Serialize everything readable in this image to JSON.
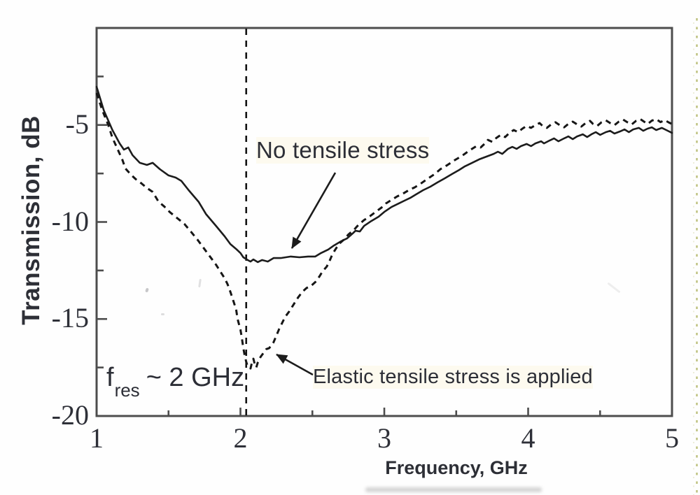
{
  "figure": {
    "y_axis_title": "Transmission, dB",
    "x_axis_title": "Frequency, GHz",
    "x_tick_labels": [
      "1",
      "2",
      "3",
      "4",
      "5"
    ],
    "y_tick_labels": [
      "-5",
      "-10",
      "-15",
      "-20"
    ],
    "annotations": {
      "no_stress": "No tensile stress",
      "elastic_stress": "Elastic tensile stress is applied",
      "resonance_symbol": "f",
      "resonance_subscript": "res",
      "resonance_value": "~ 2 GHz"
    },
    "colors": {
      "curve": "#1c1c1c",
      "axis": "#4d4d4d",
      "text": "#2d2f36",
      "scan_artifact": "#b5ba6d"
    }
  },
  "chart_data": {
    "type": "line",
    "title": "",
    "xlabel": "Frequency, GHz",
    "ylabel": "Transmission, dB",
    "xlim": [
      1,
      5
    ],
    "ylim": [
      -20,
      0
    ],
    "grid": false,
    "legend_position": "inline-annotations",
    "x_major_ticks": [
      1,
      2,
      3,
      4,
      5
    ],
    "x_minor_ticks": [
      1.5,
      2.5,
      3.5,
      4.5
    ],
    "y_major_ticks": [
      -5,
      -10,
      -15,
      -20
    ],
    "y_minor_ticks": [
      -2.5,
      -7.5,
      -12.5,
      -17.5
    ],
    "vline": {
      "x": 2.04,
      "style": "dashed",
      "label": "f_res ~ 2 GHz"
    },
    "series": [
      {
        "name": "No tensile stress",
        "line_style": "solid",
        "min_point": [
          2.15,
          -12.1
        ],
        "points": [
          [
            1.0,
            -3.03
          ],
          [
            1.05,
            -4.25
          ],
          [
            1.11,
            -5.26
          ],
          [
            1.16,
            -5.95
          ],
          [
            1.19,
            -6.27
          ],
          [
            1.22,
            -6.16
          ],
          [
            1.25,
            -6.56
          ],
          [
            1.3,
            -6.95
          ],
          [
            1.35,
            -7.06
          ],
          [
            1.39,
            -6.95
          ],
          [
            1.44,
            -7.28
          ],
          [
            1.5,
            -7.6
          ],
          [
            1.55,
            -7.71
          ],
          [
            1.59,
            -7.89
          ],
          [
            1.64,
            -8.36
          ],
          [
            1.71,
            -8.97
          ],
          [
            1.76,
            -9.59
          ],
          [
            1.83,
            -10.2
          ],
          [
            1.89,
            -10.74
          ],
          [
            1.93,
            -11.14
          ],
          [
            1.97,
            -11.39
          ],
          [
            2.0,
            -11.6
          ],
          [
            2.02,
            -11.82
          ],
          [
            2.05,
            -11.96
          ],
          [
            2.07,
            -12.04
          ],
          [
            2.09,
            -11.93
          ],
          [
            2.12,
            -12.07
          ],
          [
            2.15,
            -11.96
          ],
          [
            2.19,
            -12.04
          ],
          [
            2.23,
            -11.86
          ],
          [
            2.28,
            -11.86
          ],
          [
            2.35,
            -11.78
          ],
          [
            2.41,
            -11.82
          ],
          [
            2.47,
            -11.78
          ],
          [
            2.52,
            -11.78
          ],
          [
            2.56,
            -11.6
          ],
          [
            2.61,
            -11.42
          ],
          [
            2.65,
            -11.21
          ],
          [
            2.7,
            -10.99
          ],
          [
            2.74,
            -10.85
          ],
          [
            2.78,
            -10.59
          ],
          [
            2.8,
            -10.45
          ],
          [
            2.83,
            -10.49
          ],
          [
            2.86,
            -10.2
          ],
          [
            2.91,
            -9.95
          ],
          [
            2.96,
            -9.73
          ],
          [
            3.0,
            -9.48
          ],
          [
            3.05,
            -9.23
          ],
          [
            3.1,
            -9.05
          ],
          [
            3.14,
            -8.9
          ],
          [
            3.18,
            -8.76
          ],
          [
            3.22,
            -8.58
          ],
          [
            3.27,
            -8.36
          ],
          [
            3.32,
            -8.18
          ],
          [
            3.37,
            -7.96
          ],
          [
            3.42,
            -7.75
          ],
          [
            3.47,
            -7.53
          ],
          [
            3.52,
            -7.32
          ],
          [
            3.56,
            -7.13
          ],
          [
            3.61,
            -6.95
          ],
          [
            3.66,
            -6.77
          ],
          [
            3.71,
            -6.63
          ],
          [
            3.76,
            -6.49
          ],
          [
            3.79,
            -6.38
          ],
          [
            3.82,
            -6.49
          ],
          [
            3.86,
            -6.23
          ],
          [
            3.89,
            -6.13
          ],
          [
            3.92,
            -6.23
          ],
          [
            3.95,
            -6.09
          ],
          [
            3.99,
            -5.98
          ],
          [
            4.02,
            -6.09
          ],
          [
            4.05,
            -5.95
          ],
          [
            4.09,
            -5.84
          ],
          [
            4.11,
            -5.95
          ],
          [
            4.15,
            -5.8
          ],
          [
            4.18,
            -5.69
          ],
          [
            4.21,
            -5.84
          ],
          [
            4.25,
            -5.69
          ],
          [
            4.28,
            -5.59
          ],
          [
            4.31,
            -5.73
          ],
          [
            4.34,
            -5.59
          ],
          [
            4.38,
            -5.48
          ],
          [
            4.41,
            -5.62
          ],
          [
            4.44,
            -5.48
          ],
          [
            4.47,
            -5.37
          ],
          [
            4.5,
            -5.51
          ],
          [
            4.54,
            -5.37
          ],
          [
            4.57,
            -5.3
          ],
          [
            4.6,
            -5.44
          ],
          [
            4.64,
            -5.33
          ],
          [
            4.67,
            -5.23
          ],
          [
            4.7,
            -5.37
          ],
          [
            4.73,
            -5.23
          ],
          [
            4.77,
            -5.15
          ],
          [
            4.8,
            -5.3
          ],
          [
            4.83,
            -5.19
          ],
          [
            4.86,
            -5.12
          ],
          [
            4.89,
            -5.26
          ],
          [
            4.93,
            -5.15
          ],
          [
            4.96,
            -5.26
          ],
          [
            5.0,
            -5.41
          ]
        ]
      },
      {
        "name": "Elastic tensile stress is applied",
        "line_style": "dashed",
        "min_point": [
          2.07,
          -17.55
        ],
        "points": [
          [
            1.0,
            -3.35
          ],
          [
            1.04,
            -4.25
          ],
          [
            1.08,
            -4.97
          ],
          [
            1.11,
            -5.66
          ],
          [
            1.15,
            -6.31
          ],
          [
            1.18,
            -6.81
          ],
          [
            1.2,
            -7.24
          ],
          [
            1.24,
            -7.57
          ],
          [
            1.27,
            -7.78
          ],
          [
            1.31,
            -8.0
          ],
          [
            1.35,
            -8.25
          ],
          [
            1.39,
            -8.45
          ],
          [
            1.43,
            -8.95
          ],
          [
            1.47,
            -9.2
          ],
          [
            1.51,
            -9.5
          ],
          [
            1.56,
            -9.8
          ],
          [
            1.61,
            -10.1
          ],
          [
            1.65,
            -10.45
          ],
          [
            1.7,
            -10.9
          ],
          [
            1.74,
            -11.3
          ],
          [
            1.77,
            -11.6
          ],
          [
            1.8,
            -11.9
          ],
          [
            1.83,
            -12.2
          ],
          [
            1.86,
            -12.55
          ],
          [
            1.89,
            -12.9
          ],
          [
            1.91,
            -13.2
          ],
          [
            1.93,
            -13.6
          ],
          [
            1.95,
            -14.05
          ],
          [
            1.97,
            -14.5
          ],
          [
            1.98,
            -15.0
          ],
          [
            2.0,
            -15.55
          ],
          [
            2.01,
            -16.0
          ],
          [
            2.02,
            -16.5
          ],
          [
            2.03,
            -16.9
          ],
          [
            2.04,
            -17.2
          ],
          [
            2.05,
            -17.45
          ],
          [
            2.07,
            -17.55
          ],
          [
            2.08,
            -17.25
          ],
          [
            2.09,
            -17.05
          ],
          [
            2.1,
            -17.35
          ],
          [
            2.11,
            -17.5
          ],
          [
            2.12,
            -17.25
          ],
          [
            2.14,
            -16.95
          ],
          [
            2.16,
            -16.75
          ],
          [
            2.18,
            -16.55
          ],
          [
            2.2,
            -16.5
          ],
          [
            2.23,
            -16.2
          ],
          [
            2.25,
            -15.85
          ],
          [
            2.27,
            -15.5
          ],
          [
            2.29,
            -15.2
          ],
          [
            2.31,
            -14.9
          ],
          [
            2.34,
            -14.6
          ],
          [
            2.37,
            -14.25
          ],
          [
            2.4,
            -13.9
          ],
          [
            2.43,
            -13.6
          ],
          [
            2.46,
            -13.4
          ],
          [
            2.49,
            -13.3
          ],
          [
            2.52,
            -13.1
          ],
          [
            2.55,
            -12.8
          ],
          [
            2.57,
            -12.55
          ],
          [
            2.6,
            -12.3
          ],
          [
            2.62,
            -12.0
          ],
          [
            2.64,
            -11.65
          ],
          [
            2.67,
            -11.3
          ],
          [
            2.69,
            -11.1
          ],
          [
            2.72,
            -10.9
          ],
          [
            2.75,
            -10.65
          ],
          [
            2.79,
            -10.4
          ],
          [
            2.82,
            -10.15
          ],
          [
            2.86,
            -9.9
          ],
          [
            2.9,
            -9.7
          ],
          [
            2.94,
            -9.48
          ],
          [
            2.98,
            -9.26
          ],
          [
            3.01,
            -9.05
          ],
          [
            3.05,
            -8.86
          ],
          [
            3.09,
            -8.68
          ],
          [
            3.13,
            -8.54
          ],
          [
            3.17,
            -8.36
          ],
          [
            3.21,
            -8.22
          ],
          [
            3.25,
            -8.04
          ],
          [
            3.3,
            -7.78
          ],
          [
            3.35,
            -7.53
          ],
          [
            3.39,
            -7.28
          ],
          [
            3.44,
            -7.06
          ],
          [
            3.49,
            -6.81
          ],
          [
            3.54,
            -6.59
          ],
          [
            3.58,
            -6.38
          ],
          [
            3.61,
            -6.23
          ],
          [
            3.64,
            -6.09
          ],
          [
            3.67,
            -6.16
          ],
          [
            3.7,
            -5.95
          ],
          [
            3.72,
            -5.77
          ],
          [
            3.75,
            -5.87
          ],
          [
            3.78,
            -5.66
          ],
          [
            3.81,
            -5.51
          ],
          [
            3.84,
            -5.62
          ],
          [
            3.87,
            -5.41
          ],
          [
            3.9,
            -5.26
          ],
          [
            3.93,
            -5.37
          ],
          [
            3.96,
            -5.19
          ],
          [
            3.99,
            -5.05
          ],
          [
            4.02,
            -5.15
          ],
          [
            4.05,
            -5.01
          ],
          [
            4.08,
            -4.9
          ],
          [
            4.1,
            -5.05
          ],
          [
            4.13,
            -5.15
          ],
          [
            4.16,
            -4.97
          ],
          [
            4.19,
            -4.86
          ],
          [
            4.22,
            -5.01
          ],
          [
            4.25,
            -5.12
          ],
          [
            4.28,
            -4.94
          ],
          [
            4.31,
            -4.83
          ],
          [
            4.34,
            -4.97
          ],
          [
            4.37,
            -5.08
          ],
          [
            4.4,
            -4.9
          ],
          [
            4.43,
            -4.79
          ],
          [
            4.45,
            -4.94
          ],
          [
            4.48,
            -5.05
          ],
          [
            4.51,
            -4.86
          ],
          [
            4.54,
            -4.76
          ],
          [
            4.57,
            -4.9
          ],
          [
            4.6,
            -5.01
          ],
          [
            4.63,
            -4.83
          ],
          [
            4.66,
            -4.72
          ],
          [
            4.69,
            -4.86
          ],
          [
            4.72,
            -4.97
          ],
          [
            4.75,
            -4.79
          ],
          [
            4.78,
            -4.7
          ],
          [
            4.81,
            -4.85
          ],
          [
            4.83,
            -4.95
          ],
          [
            4.86,
            -4.78
          ],
          [
            4.89,
            -4.7
          ],
          [
            4.92,
            -4.85
          ],
          [
            4.95,
            -4.75
          ],
          [
            4.98,
            -4.88
          ],
          [
            5.0,
            -4.95
          ]
        ]
      }
    ]
  }
}
